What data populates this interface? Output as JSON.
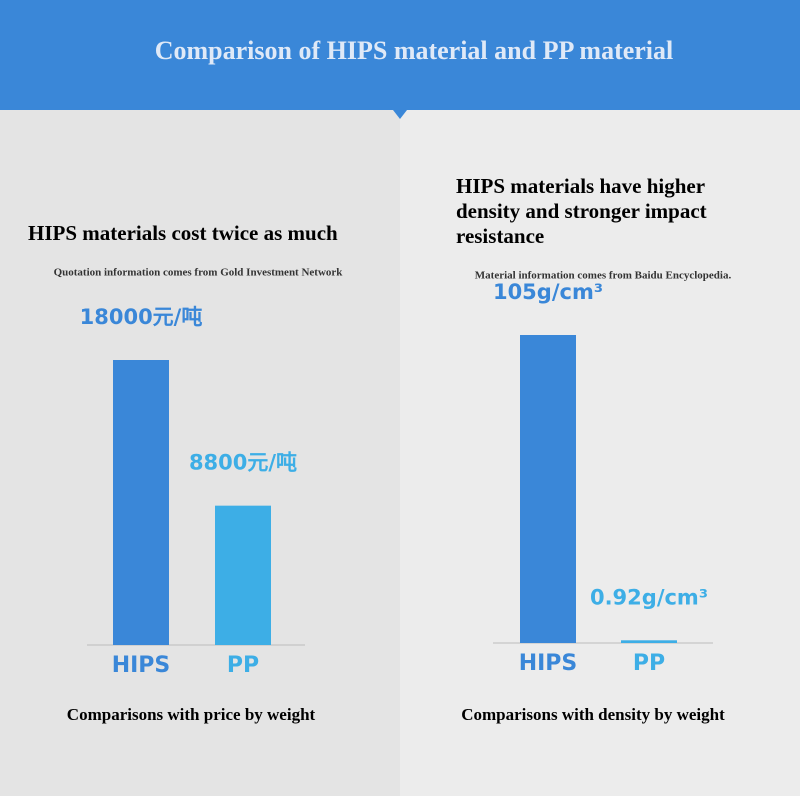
{
  "title": "Comparison of HIPS material and PP material",
  "chart_data": [
    {
      "type": "bar",
      "title": "HIPS materials cost twice as much",
      "subtitle": "Quotation information comes from Gold Investment Network",
      "categories": [
        "HIPS",
        "PP"
      ],
      "values": [
        18000,
        8800
      ],
      "value_labels": [
        "18000元/吨",
        "8800元/吨"
      ],
      "colors": [
        "#3a87d8",
        "#3daee6"
      ],
      "xlabel": "Comparisons with price by weight"
    },
    {
      "type": "bar",
      "title": "HIPS materials have higher density and stronger impact resistance",
      "subtitle": "Material information comes from Baidu Encyclopedia.",
      "categories": [
        "HIPS",
        "PP"
      ],
      "values": [
        105,
        0.92
      ],
      "value_labels": [
        "105g/cm³",
        "0.92g/cm³"
      ],
      "colors": [
        "#3a87d8",
        "#3daee6"
      ],
      "xlabel": "Comparisons with density by weight"
    }
  ]
}
